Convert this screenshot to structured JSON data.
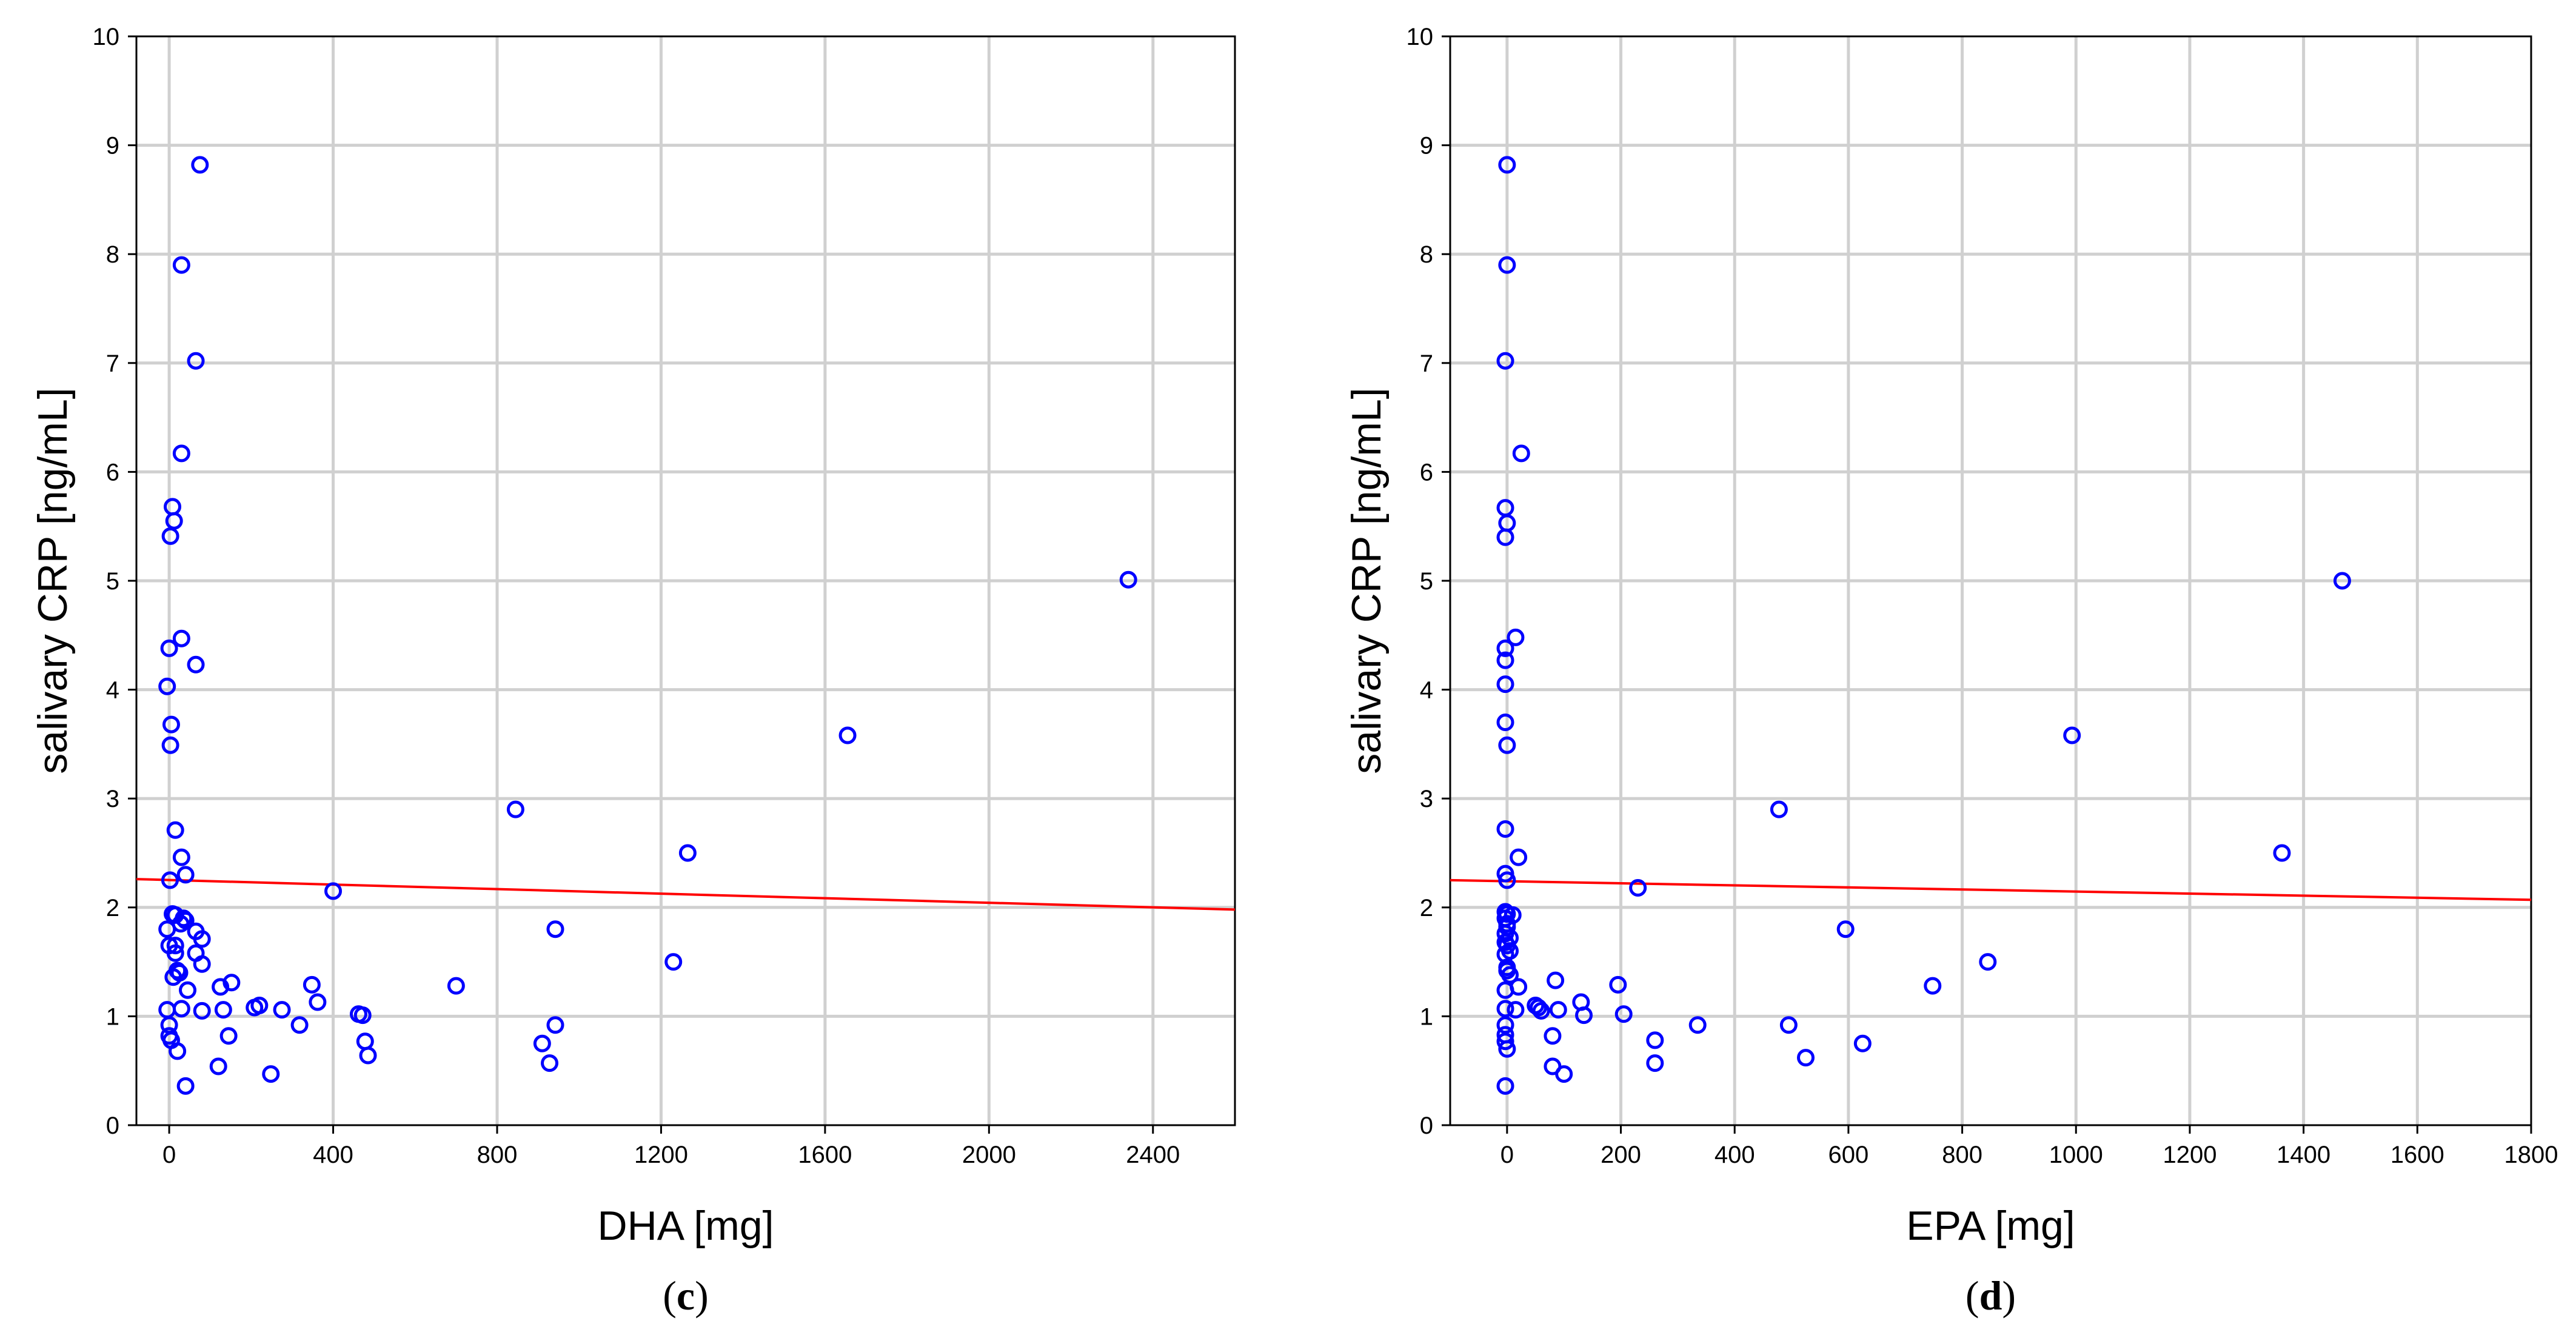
{
  "chart_data": [
    {
      "type": "scatter",
      "panel_label": "c",
      "xlabel": "DHA [mg]",
      "ylabel": "salivary CRP [ng/mL]",
      "xlim": [
        -80,
        2600
      ],
      "ylim": [
        0,
        10
      ],
      "xticks": [
        0,
        400,
        800,
        1200,
        1600,
        2000,
        2400
      ],
      "yticks": [
        0,
        1,
        2,
        3,
        4,
        5,
        6,
        7,
        8,
        9,
        10
      ],
      "grid": true,
      "marker_color": "#0000ff",
      "fit_color": "#ff0000",
      "fit_line": [
        [
          -80,
          2.26
        ],
        [
          2600,
          1.98
        ]
      ],
      "points": [
        [
          75,
          8.82
        ],
        [
          30,
          7.9
        ],
        [
          65,
          7.02
        ],
        [
          30,
          6.17
        ],
        [
          8,
          5.68
        ],
        [
          12,
          5.55
        ],
        [
          3,
          5.41
        ],
        [
          2340,
          5.01
        ],
        [
          30,
          4.47
        ],
        [
          0,
          4.38
        ],
        [
          65,
          4.23
        ],
        [
          -5,
          4.03
        ],
        [
          5,
          3.68
        ],
        [
          3,
          3.49
        ],
        [
          1655,
          3.58
        ],
        [
          845,
          2.9
        ],
        [
          15,
          2.71
        ],
        [
          1265,
          2.5
        ],
        [
          30,
          2.46
        ],
        [
          40,
          2.3
        ],
        [
          2,
          2.25
        ],
        [
          400,
          2.15
        ],
        [
          8,
          1.94
        ],
        [
          15,
          1.93
        ],
        [
          35,
          1.9
        ],
        [
          40,
          1.88
        ],
        [
          28,
          1.85
        ],
        [
          942,
          1.8
        ],
        [
          -5,
          1.8
        ],
        [
          65,
          1.78
        ],
        [
          80,
          1.71
        ],
        [
          0,
          1.65
        ],
        [
          15,
          1.65
        ],
        [
          65,
          1.58
        ],
        [
          15,
          1.58
        ],
        [
          1230,
          1.5
        ],
        [
          80,
          1.48
        ],
        [
          20,
          1.42
        ],
        [
          25,
          1.4
        ],
        [
          10,
          1.36
        ],
        [
          152,
          1.31
        ],
        [
          348,
          1.29
        ],
        [
          700,
          1.28
        ],
        [
          125,
          1.27
        ],
        [
          45,
          1.24
        ],
        [
          362,
          1.13
        ],
        [
          220,
          1.1
        ],
        [
          208,
          1.08
        ],
        [
          30,
          1.07
        ],
        [
          -5,
          1.06
        ],
        [
          132,
          1.06
        ],
        [
          275,
          1.06
        ],
        [
          80,
          1.05
        ],
        [
          462,
          1.02
        ],
        [
          472,
          1.01
        ],
        [
          318,
          0.92
        ],
        [
          942,
          0.92
        ],
        [
          0,
          0.92
        ],
        [
          0,
          0.82
        ],
        [
          145,
          0.82
        ],
        [
          5,
          0.78
        ],
        [
          478,
          0.77
        ],
        [
          910,
          0.75
        ],
        [
          20,
          0.68
        ],
        [
          485,
          0.64
        ],
        [
          928,
          0.57
        ],
        [
          120,
          0.54
        ],
        [
          248,
          0.47
        ],
        [
          40,
          0.36
        ]
      ]
    },
    {
      "type": "scatter",
      "panel_label": "d",
      "xlabel": "EPA [mg]",
      "ylabel": "salivary CRP [ng/mL]",
      "xlim": [
        -100,
        1800
      ],
      "ylim": [
        0,
        10
      ],
      "xticks": [
        0,
        200,
        400,
        600,
        800,
        1000,
        1200,
        1400,
        1600,
        1800
      ],
      "yticks": [
        0,
        1,
        2,
        3,
        4,
        5,
        6,
        7,
        8,
        9,
        10
      ],
      "grid": true,
      "marker_color": "#0000ff",
      "fit_color": "#ff0000",
      "fit_line": [
        [
          -100,
          2.25
        ],
        [
          1800,
          2.07
        ]
      ],
      "points": [
        [
          0,
          8.82
        ],
        [
          0,
          7.9
        ],
        [
          -3,
          7.02
        ],
        [
          25,
          6.17
        ],
        [
          -3,
          5.67
        ],
        [
          0,
          5.53
        ],
        [
          -3,
          5.4
        ],
        [
          1468,
          5.0
        ],
        [
          15,
          4.48
        ],
        [
          -3,
          4.38
        ],
        [
          -3,
          4.27
        ],
        [
          -3,
          4.05
        ],
        [
          -3,
          3.7
        ],
        [
          0,
          3.49
        ],
        [
          993,
          3.58
        ],
        [
          478,
          2.9
        ],
        [
          -3,
          2.72
        ],
        [
          1362,
          2.5
        ],
        [
          20,
          2.46
        ],
        [
          -3,
          2.31
        ],
        [
          0,
          2.25
        ],
        [
          230,
          2.18
        ],
        [
          -3,
          1.96
        ],
        [
          0,
          1.94
        ],
        [
          10,
          1.93
        ],
        [
          -3,
          1.9
        ],
        [
          0,
          1.85
        ],
        [
          0,
          1.82
        ],
        [
          595,
          1.8
        ],
        [
          -3,
          1.76
        ],
        [
          5,
          1.72
        ],
        [
          -3,
          1.68
        ],
        [
          0,
          1.65
        ],
        [
          5,
          1.6
        ],
        [
          -3,
          1.57
        ],
        [
          845,
          1.5
        ],
        [
          0,
          1.45
        ],
        [
          0,
          1.42
        ],
        [
          5,
          1.38
        ],
        [
          85,
          1.33
        ],
        [
          195,
          1.29
        ],
        [
          748,
          1.28
        ],
        [
          20,
          1.27
        ],
        [
          -3,
          1.24
        ],
        [
          130,
          1.13
        ],
        [
          50,
          1.1
        ],
        [
          55,
          1.08
        ],
        [
          -3,
          1.07
        ],
        [
          90,
          1.06
        ],
        [
          15,
          1.06
        ],
        [
          60,
          1.05
        ],
        [
          205,
          1.02
        ],
        [
          135,
          1.01
        ],
        [
          335,
          0.92
        ],
        [
          495,
          0.92
        ],
        [
          -3,
          0.92
        ],
        [
          80,
          0.82
        ],
        [
          -3,
          0.83
        ],
        [
          260,
          0.78
        ],
        [
          -3,
          0.77
        ],
        [
          625,
          0.75
        ],
        [
          0,
          0.7
        ],
        [
          525,
          0.62
        ],
        [
          260,
          0.57
        ],
        [
          80,
          0.54
        ],
        [
          100,
          0.47
        ],
        [
          -3,
          0.36
        ]
      ]
    }
  ]
}
